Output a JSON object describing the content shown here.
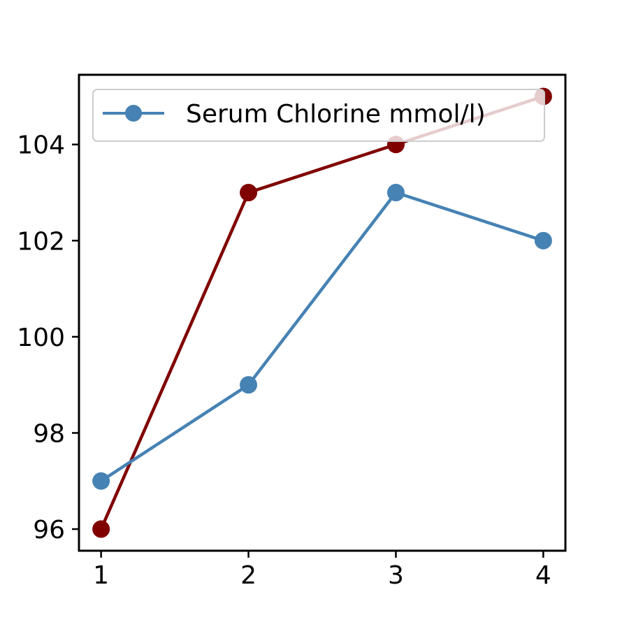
{
  "chart_data": {
    "type": "line",
    "x": [
      1,
      2,
      3,
      4
    ],
    "xlim": [
      0.85,
      4.15
    ],
    "ylim": [
      95.55,
      105.45
    ],
    "xticks": [
      "1",
      "2",
      "3",
      "4"
    ],
    "yticks": [
      "96",
      "98",
      "100",
      "102",
      "104"
    ],
    "grid": false,
    "legend_position": "top",
    "series": [
      {
        "name": "",
        "color": "#800000",
        "values": [
          96,
          103,
          104,
          105
        ]
      },
      {
        "name": "Serum Chlorine mmol/l)",
        "color": "#4682b4",
        "values": [
          97,
          99,
          103,
          102
        ]
      }
    ]
  }
}
